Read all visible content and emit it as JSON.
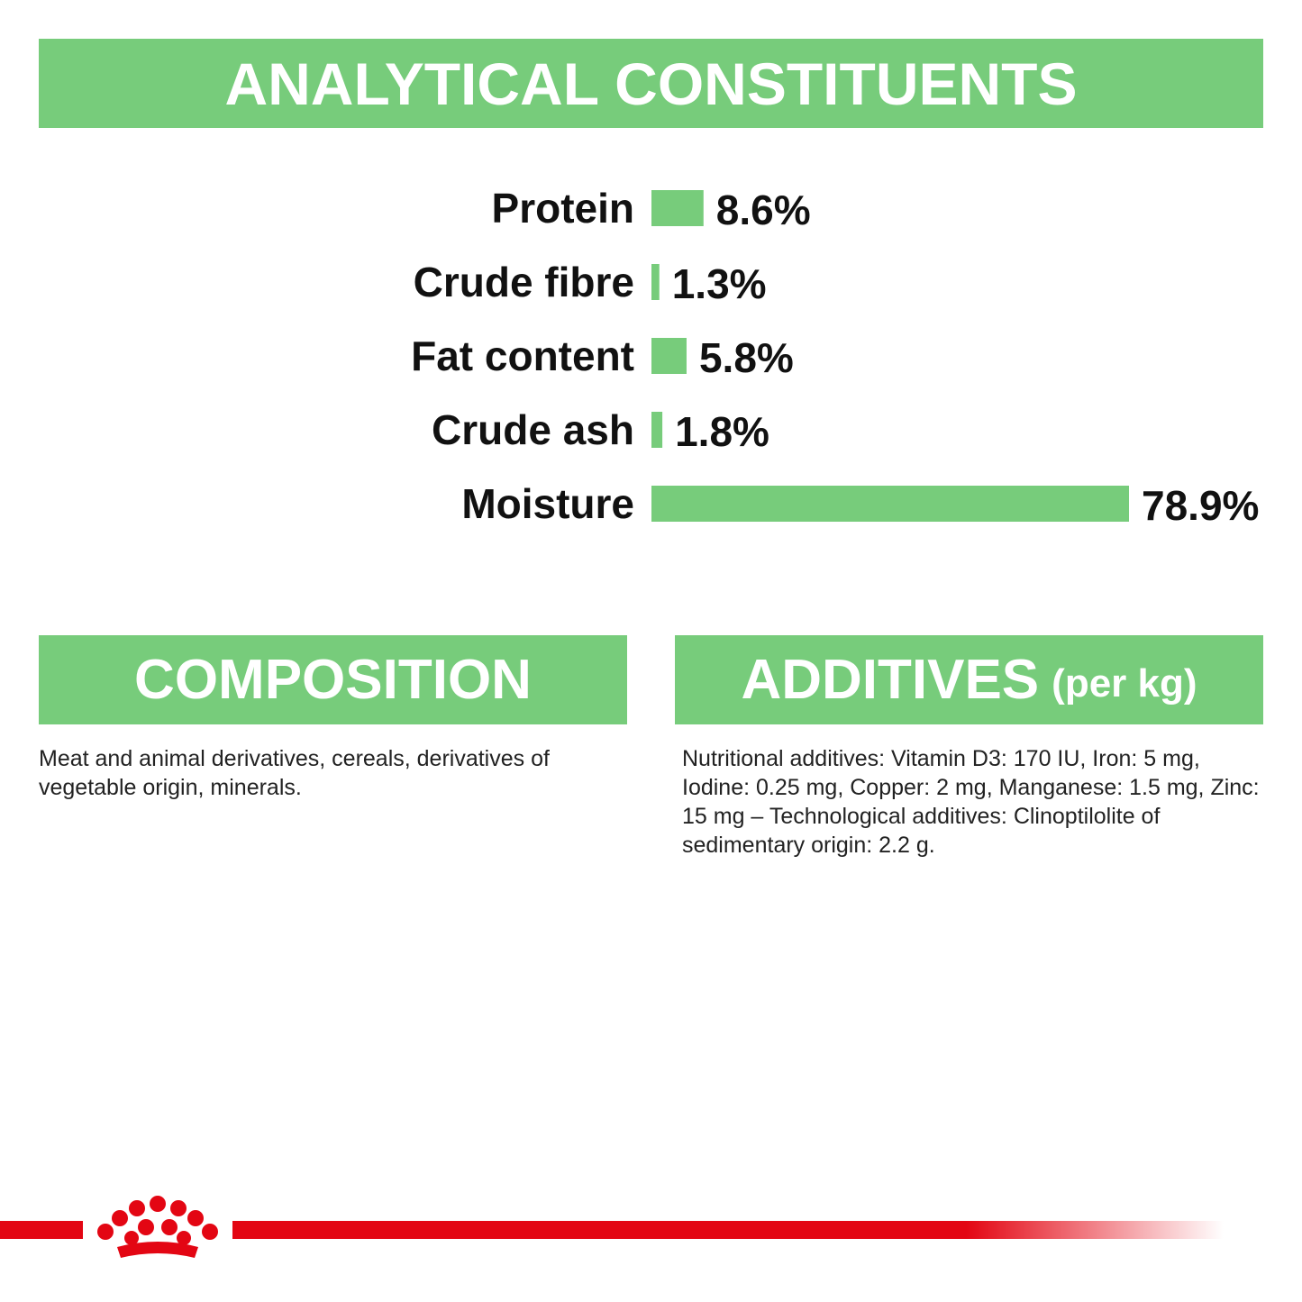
{
  "banners": {
    "analytical": "ANALYTICAL CONSTITUENTS",
    "composition": "COMPOSITION",
    "additives": "ADDITIVES",
    "additives_unit": "(per kg)"
  },
  "chart_data": {
    "type": "bar",
    "orientation": "horizontal",
    "categories": [
      "Protein",
      "Crude fibre",
      "Fat content",
      "Crude ash",
      "Moisture"
    ],
    "values": [
      8.6,
      1.3,
      5.8,
      1.8,
      78.9
    ],
    "value_labels": [
      "8.6%",
      "1.3%",
      "5.8%",
      "1.8%",
      "78.9%"
    ],
    "title": "ANALYTICAL CONSTITUENTS",
    "xlabel": "",
    "ylabel": "",
    "xlim": [
      0,
      78.9
    ],
    "grid": false,
    "legend": "none",
    "bar_color": "#77cc7b"
  },
  "composition": {
    "text": "Meat and animal derivatives, cereals, derivatives of vegetable origin, minerals."
  },
  "additives": {
    "text": "Nutritional additives: Vitamin D3: 170 IU, Iron: 5 mg, Iodine: 0.25 mg, Copper: 2 mg, Manganese: 1.5 mg, Zinc: 15 mg – Technological additives: Clinoptilolite of sedimentary origin: 2.2 g."
  },
  "colors": {
    "accent_green": "#77cc7b",
    "brand_red": "#e30613"
  },
  "logo": {
    "icon": "royal-canin-crown-icon"
  }
}
